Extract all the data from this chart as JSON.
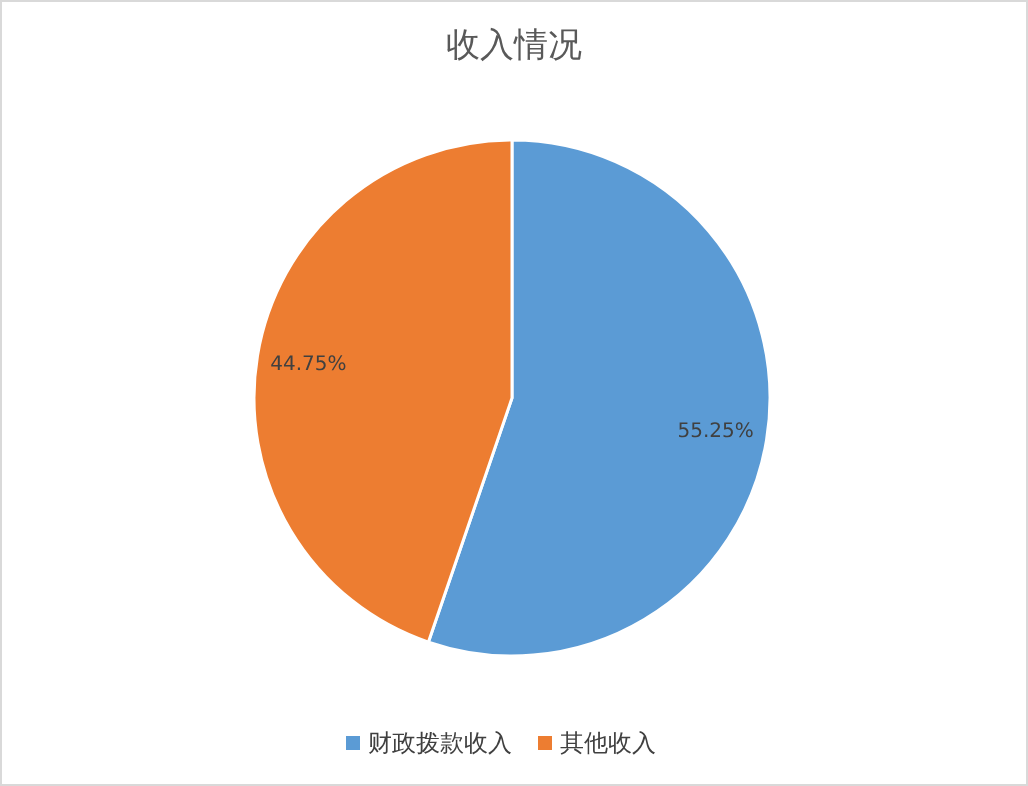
{
  "chart_data": {
    "type": "pie",
    "title": "收入情况",
    "categories": [
      "财政拨款收入",
      "其他收入"
    ],
    "values": [
      55.25,
      44.75
    ],
    "colors": [
      "#5b9bd5",
      "#ed7d31"
    ],
    "value_labels": [
      "55.25%",
      "44.75%"
    ],
    "legend": "bottom"
  }
}
